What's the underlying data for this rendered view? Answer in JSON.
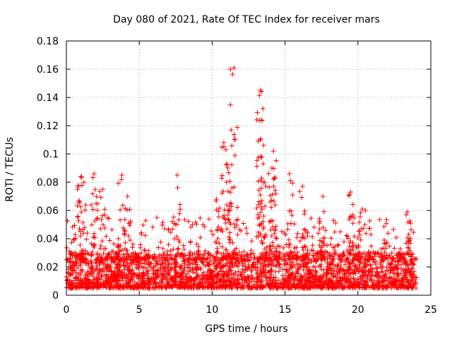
{
  "chart_data": {
    "type": "scatter",
    "title": "Day 080 of 2021, Rate Of TEC Index for receiver mars",
    "xlabel": "GPS time / hours",
    "ylabel": "ROTI / TECUs",
    "xlim": [
      0,
      25
    ],
    "ylim": [
      0,
      0.18
    ],
    "x_ticks": [
      0,
      5,
      10,
      15,
      20,
      25
    ],
    "x_tick_labels": [
      "0",
      "5",
      "10",
      "15",
      "20",
      "25"
    ],
    "y_ticks": [
      0,
      0.02,
      0.04,
      0.06,
      0.08,
      0.1,
      0.12,
      0.14,
      0.16,
      0.18
    ],
    "y_tick_labels": [
      "0",
      "0.02",
      "0.04",
      "0.06",
      "0.08",
      "0.1",
      "0.12",
      "0.14",
      "0.16",
      "0.18"
    ],
    "grid": true,
    "marker": "+",
    "marker_color": "#ff0000",
    "data_range": {
      "x": [
        0,
        24
      ],
      "typical_y": [
        0.005,
        0.03
      ]
    },
    "notable_points": [
      {
        "x": 1.0,
        "y": 0.084
      },
      {
        "x": 1.2,
        "y": 0.08
      },
      {
        "x": 1.9,
        "y": 0.086
      },
      {
        "x": 2.5,
        "y": 0.075
      },
      {
        "x": 3.8,
        "y": 0.085
      },
      {
        "x": 4.2,
        "y": 0.07
      },
      {
        "x": 7.6,
        "y": 0.085
      },
      {
        "x": 10.3,
        "y": 0.068
      },
      {
        "x": 10.8,
        "y": 0.108
      },
      {
        "x": 11.3,
        "y": 0.117
      },
      {
        "x": 11.5,
        "y": 0.161
      },
      {
        "x": 11.0,
        "y": 0.093
      },
      {
        "x": 13.3,
        "y": 0.145
      },
      {
        "x": 13.4,
        "y": 0.124
      },
      {
        "x": 13.3,
        "y": 0.11
      },
      {
        "x": 13.5,
        "y": 0.093
      },
      {
        "x": 14.2,
        "y": 0.102
      },
      {
        "x": 14.1,
        "y": 0.09
      },
      {
        "x": 15.3,
        "y": 0.086
      },
      {
        "x": 16.2,
        "y": 0.077
      },
      {
        "x": 17.6,
        "y": 0.07
      },
      {
        "x": 19.5,
        "y": 0.073
      },
      {
        "x": 20.3,
        "y": 0.061
      },
      {
        "x": 23.4,
        "y": 0.059
      }
    ]
  }
}
